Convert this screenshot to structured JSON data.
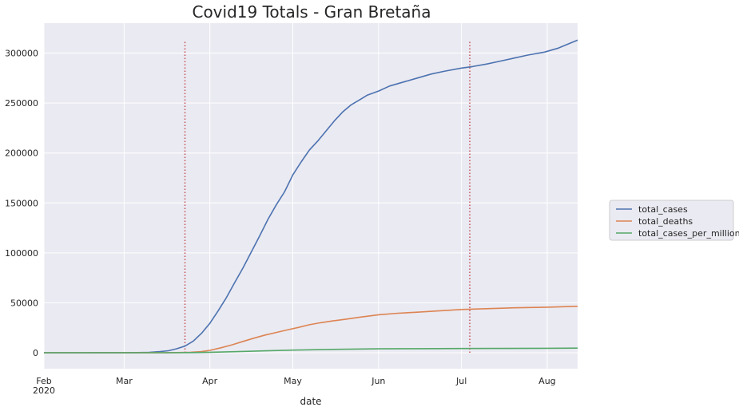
{
  "chart_data": {
    "type": "line",
    "title": "Covid19  Totals - Gran Bretaña",
    "xlabel": "date",
    "ylabel": "",
    "x_ticks": [
      {
        "date": "2020-02-01",
        "label": "Feb",
        "sublabel": "2020"
      },
      {
        "date": "2020-03-01",
        "label": "Mar",
        "sublabel": ""
      },
      {
        "date": "2020-04-01",
        "label": "Apr",
        "sublabel": ""
      },
      {
        "date": "2020-05-01",
        "label": "May",
        "sublabel": ""
      },
      {
        "date": "2020-06-01",
        "label": "Jun",
        "sublabel": ""
      },
      {
        "date": "2020-07-01",
        "label": "Jul",
        "sublabel": ""
      },
      {
        "date": "2020-08-01",
        "label": "Aug",
        "sublabel": ""
      }
    ],
    "y_ticks": [
      0,
      50000,
      100000,
      150000,
      200000,
      250000,
      300000
    ],
    "y_tick_labels": [
      "0",
      "50000",
      "100000",
      "150000",
      "200000",
      "250000",
      "300000"
    ],
    "xlim": [
      "2020-02-01",
      "2020-08-12"
    ],
    "ylim": [
      -16000,
      330000
    ],
    "grid": true,
    "legend_position": "right",
    "vlines": [
      {
        "date": "2020-03-23",
        "ymin": 0,
        "ymax": 313000,
        "color": "#c44e52"
      },
      {
        "date": "2020-07-04",
        "ymin": 0,
        "ymax": 313000,
        "color": "#c44e52"
      }
    ],
    "series": [
      {
        "name": "total_cases",
        "color": "#4c72b0",
        "points": [
          [
            "2020-02-01",
            2
          ],
          [
            "2020-02-15",
            9
          ],
          [
            "2020-03-01",
            35
          ],
          [
            "2020-03-06",
            160
          ],
          [
            "2020-03-10",
            370
          ],
          [
            "2020-03-14",
            1140
          ],
          [
            "2020-03-17",
            1950
          ],
          [
            "2020-03-20",
            4000
          ],
          [
            "2020-03-23",
            6650
          ],
          [
            "2020-03-26",
            11650
          ],
          [
            "2020-03-29",
            19500
          ],
          [
            "2020-04-01",
            29500
          ],
          [
            "2020-04-04",
            42000
          ],
          [
            "2020-04-07",
            55200
          ],
          [
            "2020-04-10",
            70300
          ],
          [
            "2020-04-13",
            85000
          ],
          [
            "2020-04-16",
            101000
          ],
          [
            "2020-04-19",
            117000
          ],
          [
            "2020-04-22",
            133500
          ],
          [
            "2020-04-25",
            148000
          ],
          [
            "2020-04-28",
            161000
          ],
          [
            "2020-05-01",
            178000
          ],
          [
            "2020-05-04",
            191000
          ],
          [
            "2020-05-07",
            203000
          ],
          [
            "2020-05-10",
            212000
          ],
          [
            "2020-05-13",
            222000
          ],
          [
            "2020-05-16",
            232000
          ],
          [
            "2020-05-19",
            241000
          ],
          [
            "2020-05-22",
            248000
          ],
          [
            "2020-05-25",
            253000
          ],
          [
            "2020-05-28",
            258000
          ],
          [
            "2020-06-01",
            262000
          ],
          [
            "2020-06-05",
            267000
          ],
          [
            "2020-06-10",
            271000
          ],
          [
            "2020-06-15",
            275000
          ],
          [
            "2020-06-20",
            279000
          ],
          [
            "2020-06-25",
            282000
          ],
          [
            "2020-07-01",
            285000
          ],
          [
            "2020-07-05",
            286500
          ],
          [
            "2020-07-10",
            289000
          ],
          [
            "2020-07-15",
            292000
          ],
          [
            "2020-07-20",
            295000
          ],
          [
            "2020-07-25",
            298000
          ],
          [
            "2020-07-31",
            301000
          ],
          [
            "2020-08-05",
            305000
          ],
          [
            "2020-08-12",
            313000
          ]
        ]
      },
      {
        "name": "total_deaths",
        "color": "#dd8452",
        "points": [
          [
            "2020-02-01",
            0
          ],
          [
            "2020-03-01",
            0
          ],
          [
            "2020-03-15",
            50
          ],
          [
            "2020-03-20",
            180
          ],
          [
            "2020-03-25",
            460
          ],
          [
            "2020-03-29",
            1200
          ],
          [
            "2020-04-01",
            2350
          ],
          [
            "2020-04-05",
            4900
          ],
          [
            "2020-04-09",
            7900
          ],
          [
            "2020-04-13",
            11300
          ],
          [
            "2020-04-17",
            14600
          ],
          [
            "2020-04-21",
            17700
          ],
          [
            "2020-04-25",
            20300
          ],
          [
            "2020-04-29",
            22800
          ],
          [
            "2020-05-03",
            25300
          ],
          [
            "2020-05-07",
            28000
          ],
          [
            "2020-05-11",
            30000
          ],
          [
            "2020-05-15",
            31700
          ],
          [
            "2020-05-20",
            33500
          ],
          [
            "2020-05-25",
            35500
          ],
          [
            "2020-06-01",
            38000
          ],
          [
            "2020-06-08",
            39500
          ],
          [
            "2020-06-15",
            40600
          ],
          [
            "2020-06-22",
            41800
          ],
          [
            "2020-07-01",
            43300
          ],
          [
            "2020-07-10",
            44100
          ],
          [
            "2020-07-20",
            45000
          ],
          [
            "2020-08-01",
            45600
          ],
          [
            "2020-08-12",
            46500
          ]
        ]
      },
      {
        "name": "total_cases_per_million",
        "color": "#55a868",
        "points": [
          [
            "2020-02-01",
            0
          ],
          [
            "2020-03-15",
            20
          ],
          [
            "2020-03-25",
            150
          ],
          [
            "2020-04-01",
            430
          ],
          [
            "2020-04-10",
            1030
          ],
          [
            "2020-04-20",
            1800
          ],
          [
            "2020-05-01",
            2600
          ],
          [
            "2020-05-15",
            3320
          ],
          [
            "2020-06-01",
            3860
          ],
          [
            "2020-06-15",
            4050
          ],
          [
            "2020-07-01",
            4200
          ],
          [
            "2020-07-15",
            4300
          ],
          [
            "2020-08-01",
            4440
          ],
          [
            "2020-08-12",
            4610
          ]
        ]
      }
    ]
  }
}
